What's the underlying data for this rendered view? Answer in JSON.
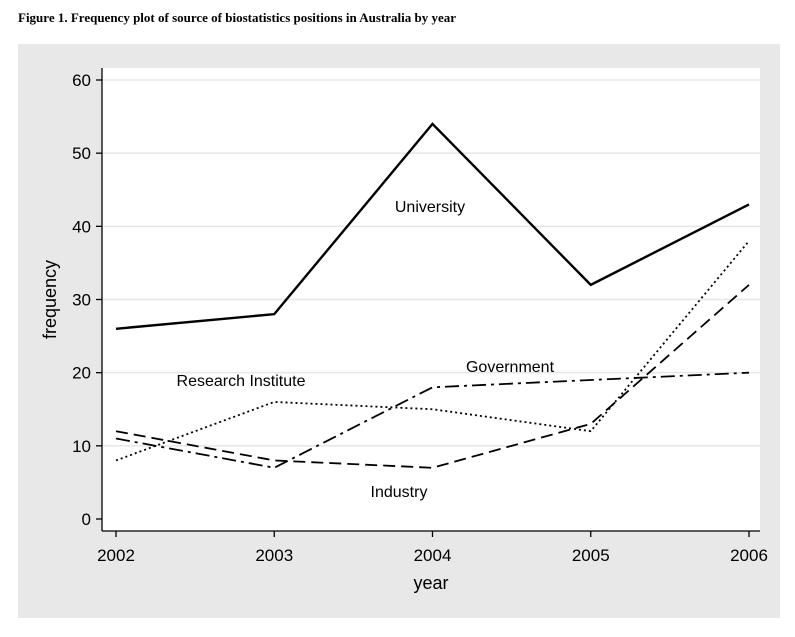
{
  "caption": "Figure 1. Frequency plot of source of biostatistics positions in Australia by year",
  "chart_data": {
    "type": "line",
    "x": [
      2002,
      2003,
      2004,
      2005,
      2006
    ],
    "xlabel": "year",
    "ylabel": "frequency",
    "ylim": [
      0,
      60
    ],
    "yticks": [
      0,
      10,
      20,
      30,
      40,
      50,
      60
    ],
    "grid": "horizontal",
    "series": [
      {
        "name": "University",
        "values": [
          26,
          28,
          54,
          32,
          43
        ],
        "style": "solid"
      },
      {
        "name": "Research Institute",
        "values": [
          8,
          16,
          15,
          12,
          38
        ],
        "style": "dotted"
      },
      {
        "name": "Industry",
        "values": [
          12,
          8,
          7,
          13,
          32
        ],
        "style": "dashed"
      },
      {
        "name": "Government",
        "values": [
          11,
          7,
          18,
          19,
          20
        ],
        "style": "dash-dot"
      }
    ]
  }
}
